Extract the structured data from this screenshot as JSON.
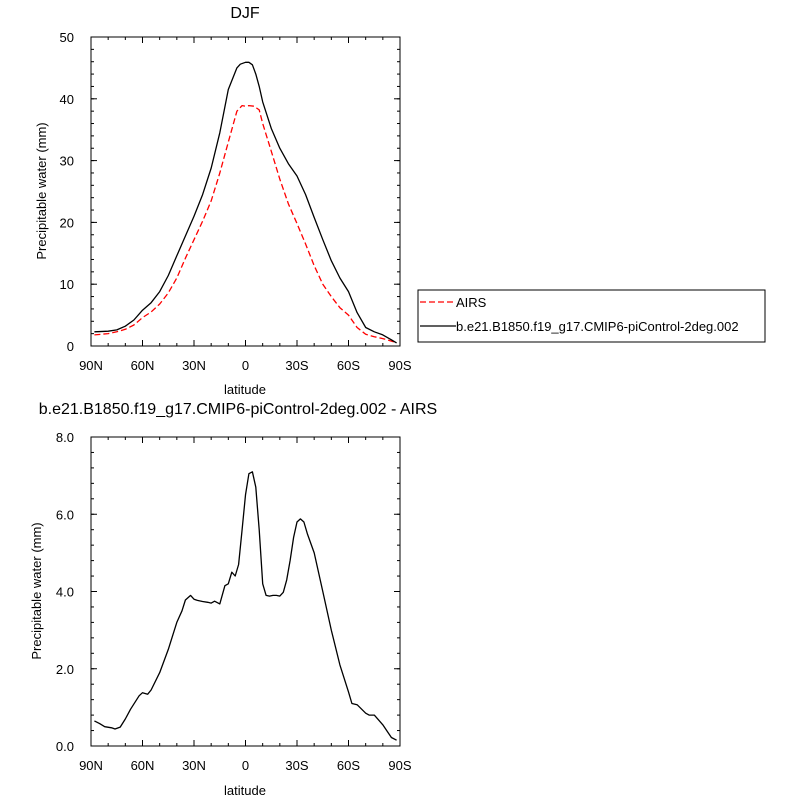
{
  "chart_data": [
    {
      "type": "line",
      "title": "DJF",
      "xlabel": "latitude",
      "ylabel": "Precipitable water (mm)",
      "xlim": [
        90,
        -90
      ],
      "ylim": [
        0,
        50
      ],
      "x_ticks": [
        {
          "v": 90,
          "label": "90N"
        },
        {
          "v": 60,
          "label": "60N"
        },
        {
          "v": 30,
          "label": "30N"
        },
        {
          "v": 0,
          "label": "0"
        },
        {
          "v": -30,
          "label": "30S"
        },
        {
          "v": -60,
          "label": "60S"
        },
        {
          "v": -90,
          "label": "90S"
        }
      ],
      "y_ticks": [
        {
          "v": 0,
          "label": "0"
        },
        {
          "v": 10,
          "label": "10"
        },
        {
          "v": 20,
          "label": "20"
        },
        {
          "v": 30,
          "label": "30"
        },
        {
          "v": 40,
          "label": "40"
        },
        {
          "v": 50,
          "label": "50"
        }
      ],
      "legend_position": "right",
      "series": [
        {
          "name": "AIRS",
          "color": "#ff0000",
          "dash": true,
          "x": [
            88,
            80,
            75,
            70,
            65,
            60,
            55,
            50,
            45,
            40,
            35,
            30,
            25,
            20,
            15,
            10,
            5,
            2,
            0,
            -2,
            -5,
            -8,
            -10,
            -15,
            -20,
            -25,
            -30,
            -35,
            -40,
            -45,
            -50,
            -55,
            -60,
            -65,
            -70,
            -75,
            -80,
            -85,
            -88
          ],
          "y": [
            1.8,
            2.0,
            2.3,
            2.7,
            3.4,
            4.6,
            5.5,
            6.8,
            8.6,
            11.0,
            14.2,
            17.2,
            20.2,
            23.5,
            28.0,
            33.0,
            38.0,
            38.9,
            38.8,
            38.9,
            38.8,
            38.2,
            36.0,
            31.5,
            27.0,
            23.0,
            19.8,
            16.5,
            13.0,
            10.0,
            8.0,
            6.2,
            5.0,
            3.0,
            1.9,
            1.5,
            1.2,
            0.8,
            0.5
          ]
        },
        {
          "name": "b.e21.B1850.f19_g17.CMIP6-piControl-2deg.002",
          "color": "#000000",
          "dash": false,
          "x": [
            88,
            80,
            75,
            70,
            65,
            60,
            55,
            50,
            45,
            40,
            35,
            30,
            25,
            20,
            15,
            10,
            5,
            3,
            0,
            -2,
            -4,
            -6,
            -8,
            -10,
            -15,
            -20,
            -25,
            -30,
            -35,
            -40,
            -45,
            -50,
            -55,
            -60,
            -65,
            -70,
            -75,
            -80,
            -85,
            -88
          ],
          "y": [
            2.3,
            2.4,
            2.6,
            3.2,
            4.2,
            5.8,
            7.0,
            8.8,
            11.4,
            14.6,
            17.8,
            21.0,
            24.5,
            28.8,
            34.5,
            41.5,
            45.0,
            45.6,
            45.9,
            45.9,
            45.5,
            44.0,
            42.0,
            39.5,
            35.2,
            32.0,
            29.5,
            27.5,
            24.5,
            20.8,
            17.2,
            13.8,
            11.0,
            8.8,
            5.4,
            3.0,
            2.3,
            1.8,
            1.0,
            0.5
          ]
        }
      ]
    },
    {
      "type": "line",
      "title": "b.e21.B1850.f19_g17.CMIP6-piControl-2deg.002 - AIRS",
      "xlabel": "latitude",
      "ylabel": "Precipitable water (mm)",
      "xlim": [
        90,
        -90
      ],
      "ylim": [
        0,
        8
      ],
      "x_ticks": [
        {
          "v": 90,
          "label": "90N"
        },
        {
          "v": 60,
          "label": "60N"
        },
        {
          "v": 30,
          "label": "30N"
        },
        {
          "v": 0,
          "label": "0"
        },
        {
          "v": -30,
          "label": "30S"
        },
        {
          "v": -60,
          "label": "60S"
        },
        {
          "v": -90,
          "label": "90S"
        }
      ],
      "y_ticks": [
        {
          "v": 0,
          "label": "0.0"
        },
        {
          "v": 2,
          "label": "2.0"
        },
        {
          "v": 4,
          "label": "4.0"
        },
        {
          "v": 6,
          "label": "6.0"
        },
        {
          "v": 8,
          "label": "8.0"
        }
      ],
      "series": [
        {
          "color": "#000000",
          "dash": false,
          "x": [
            88,
            85,
            82,
            78,
            76,
            73,
            70,
            67,
            62,
            60,
            57,
            55,
            50,
            45,
            40,
            37,
            35,
            32,
            30,
            28,
            25,
            22,
            20,
            18,
            15,
            12,
            10,
            8,
            6,
            4,
            2,
            0,
            -2,
            -4,
            -6,
            -8,
            -10,
            -12,
            -14,
            -16,
            -18,
            -20,
            -22,
            -24,
            -26,
            -28,
            -30,
            -32,
            -34,
            -36,
            -40,
            -45,
            -50,
            -55,
            -60,
            -62,
            -65,
            -70,
            -72,
            -75,
            -80,
            -83,
            -85,
            -88
          ],
          "y": [
            0.65,
            0.58,
            0.5,
            0.47,
            0.44,
            0.49,
            0.7,
            0.95,
            1.3,
            1.38,
            1.34,
            1.45,
            1.9,
            2.5,
            3.2,
            3.5,
            3.78,
            3.9,
            3.8,
            3.77,
            3.74,
            3.72,
            3.7,
            3.75,
            3.68,
            4.15,
            4.2,
            4.5,
            4.4,
            4.7,
            5.6,
            6.5,
            7.05,
            7.1,
            6.7,
            5.6,
            4.2,
            3.9,
            3.88,
            3.9,
            3.9,
            3.88,
            3.98,
            4.3,
            4.8,
            5.4,
            5.8,
            5.88,
            5.8,
            5.5,
            5.0,
            4.0,
            3.0,
            2.1,
            1.4,
            1.1,
            1.07,
            0.85,
            0.8,
            0.8,
            0.55,
            0.35,
            0.22,
            0.15
          ]
        }
      ]
    }
  ]
}
